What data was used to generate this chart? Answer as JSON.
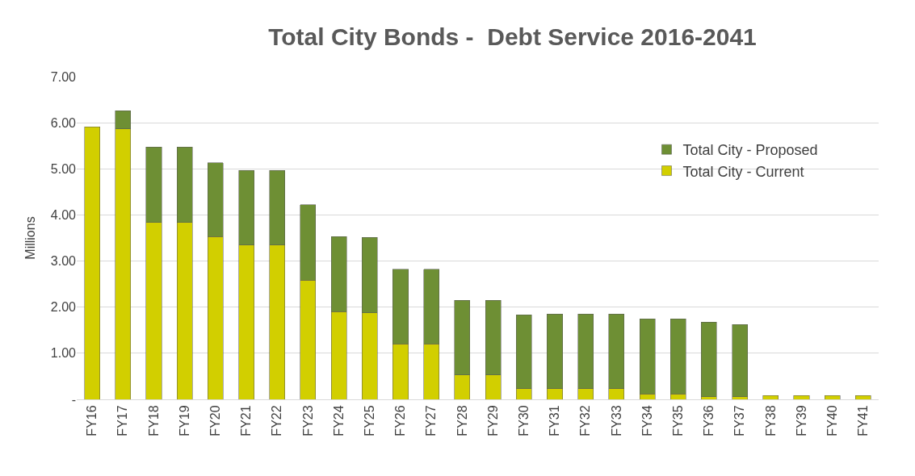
{
  "chart_data": {
    "type": "bar",
    "title": "Total City Bonds -  Debt Service 2016-2041",
    "ylabel": "Millions",
    "categories": [
      "FY16",
      "FY17",
      "FY18",
      "FY19",
      "FY20",
      "FY21",
      "FY22",
      "FY23",
      "FY24",
      "FY25",
      "FY26",
      "FY27",
      "FY28",
      "FY29",
      "FY30",
      "FY31",
      "FY32",
      "FY33",
      "FY34",
      "FY35",
      "FY36",
      "FY37",
      "FY38",
      "FY39",
      "FY40",
      "FY41"
    ],
    "stacked": true,
    "series": [
      {
        "name": "Total City - Current",
        "color": "#d2cf00",
        "values": [
          5.91,
          5.87,
          3.84,
          3.84,
          3.53,
          3.35,
          3.35,
          2.59,
          1.9,
          1.88,
          1.2,
          1.2,
          0.53,
          0.53,
          0.23,
          0.23,
          0.23,
          0.23,
          0.12,
          0.12,
          0.06,
          0.06,
          0.08,
          0.08,
          0.08,
          0.08
        ]
      },
      {
        "name": "Total City - Proposed",
        "color": "#6e8f34",
        "values": [
          null,
          0.39,
          1.63,
          1.63,
          1.6,
          1.62,
          1.62,
          1.63,
          1.63,
          1.63,
          1.62,
          1.62,
          1.62,
          1.62,
          1.6,
          1.62,
          1.62,
          1.62,
          1.63,
          1.63,
          1.62,
          1.56,
          null,
          null,
          null,
          null
        ]
      }
    ],
    "ylim": [
      0,
      7
    ],
    "yticks": [
      {
        "value": 0,
        "label": "-"
      },
      {
        "value": 1,
        "label": "1.00"
      },
      {
        "value": 2,
        "label": "2.00"
      },
      {
        "value": 3,
        "label": "3.00"
      },
      {
        "value": 4,
        "label": "4.00"
      },
      {
        "value": 5,
        "label": "5.00"
      },
      {
        "value": 6,
        "label": "6.00"
      },
      {
        "value": 7,
        "label": "7.00"
      }
    ],
    "grid": "y",
    "legend": "right"
  }
}
